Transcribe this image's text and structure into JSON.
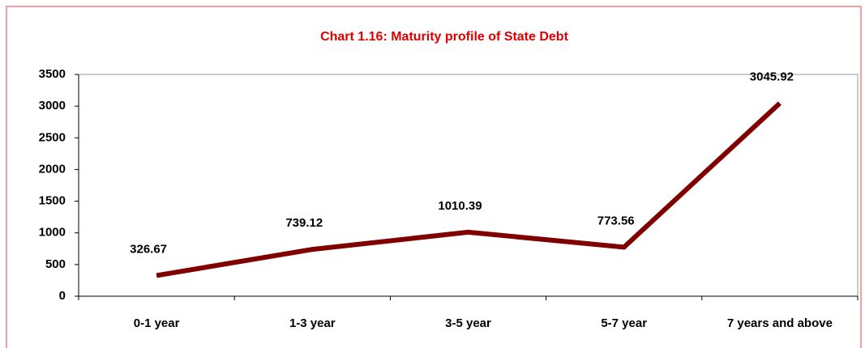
{
  "chart_data": {
    "type": "line",
    "title": "Chart 1.16: Maturity profile of State Debt",
    "categories": [
      "0-1 year",
      "1-3 year",
      "3-5 year",
      "5-7 year",
      "7 years and above"
    ],
    "values": [
      326.67,
      739.12,
      1010.39,
      773.56,
      3045.92
    ],
    "color": "#800000",
    "ylim": [
      0,
      3500
    ],
    "yticks": [
      0,
      500,
      1000,
      1500,
      2000,
      2500,
      3000,
      3500
    ],
    "grid": false
  }
}
